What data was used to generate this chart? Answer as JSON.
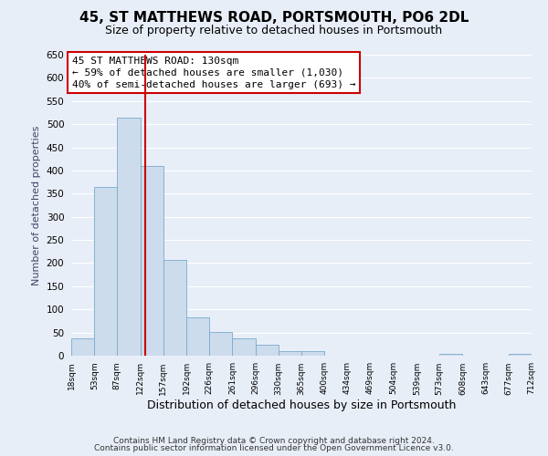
{
  "title": "45, ST MATTHEWS ROAD, PORTSMOUTH, PO6 2DL",
  "subtitle": "Size of property relative to detached houses in Portsmouth",
  "xlabel": "Distribution of detached houses by size in Portsmouth",
  "ylabel": "Number of detached properties",
  "bar_color": "#ccdcec",
  "bar_edge_color": "#7aaacc",
  "bin_edges": [
    18,
    53,
    87,
    122,
    157,
    192,
    226,
    261,
    296,
    330,
    365,
    400,
    434,
    469,
    504,
    539,
    573,
    608,
    643,
    677,
    712
  ],
  "bar_heights": [
    38,
    365,
    515,
    410,
    207,
    83,
    52,
    37,
    23,
    10,
    10,
    0,
    0,
    0,
    0,
    0,
    3,
    0,
    0,
    3
  ],
  "tick_labels": [
    "18sqm",
    "53sqm",
    "87sqm",
    "122sqm",
    "157sqm",
    "192sqm",
    "226sqm",
    "261sqm",
    "296sqm",
    "330sqm",
    "365sqm",
    "400sqm",
    "434sqm",
    "469sqm",
    "504sqm",
    "539sqm",
    "573sqm",
    "608sqm",
    "643sqm",
    "677sqm",
    "712sqm"
  ],
  "vline_x": 130,
  "vline_color": "#cc0000",
  "ylim": [
    0,
    650
  ],
  "yticks": [
    0,
    50,
    100,
    150,
    200,
    250,
    300,
    350,
    400,
    450,
    500,
    550,
    600,
    650
  ],
  "annotation_title": "45 ST MATTHEWS ROAD: 130sqm",
  "annotation_line1": "← 59% of detached houses are smaller (1,030)",
  "annotation_line2": "40% of semi-detached houses are larger (693) →",
  "annotation_box_color": "#ffffff",
  "annotation_box_edge": "#cc0000",
  "footer1": "Contains HM Land Registry data © Crown copyright and database right 2024.",
  "footer2": "Contains public sector information licensed under the Open Government Licence v3.0.",
  "background_color": "#e8eef8",
  "grid_color": "#ffffff",
  "title_fontsize": 11,
  "subtitle_fontsize": 9,
  "xlabel_fontsize": 9,
  "ylabel_fontsize": 8,
  "footer_fontsize": 6.5,
  "ann_fontsize": 8
}
